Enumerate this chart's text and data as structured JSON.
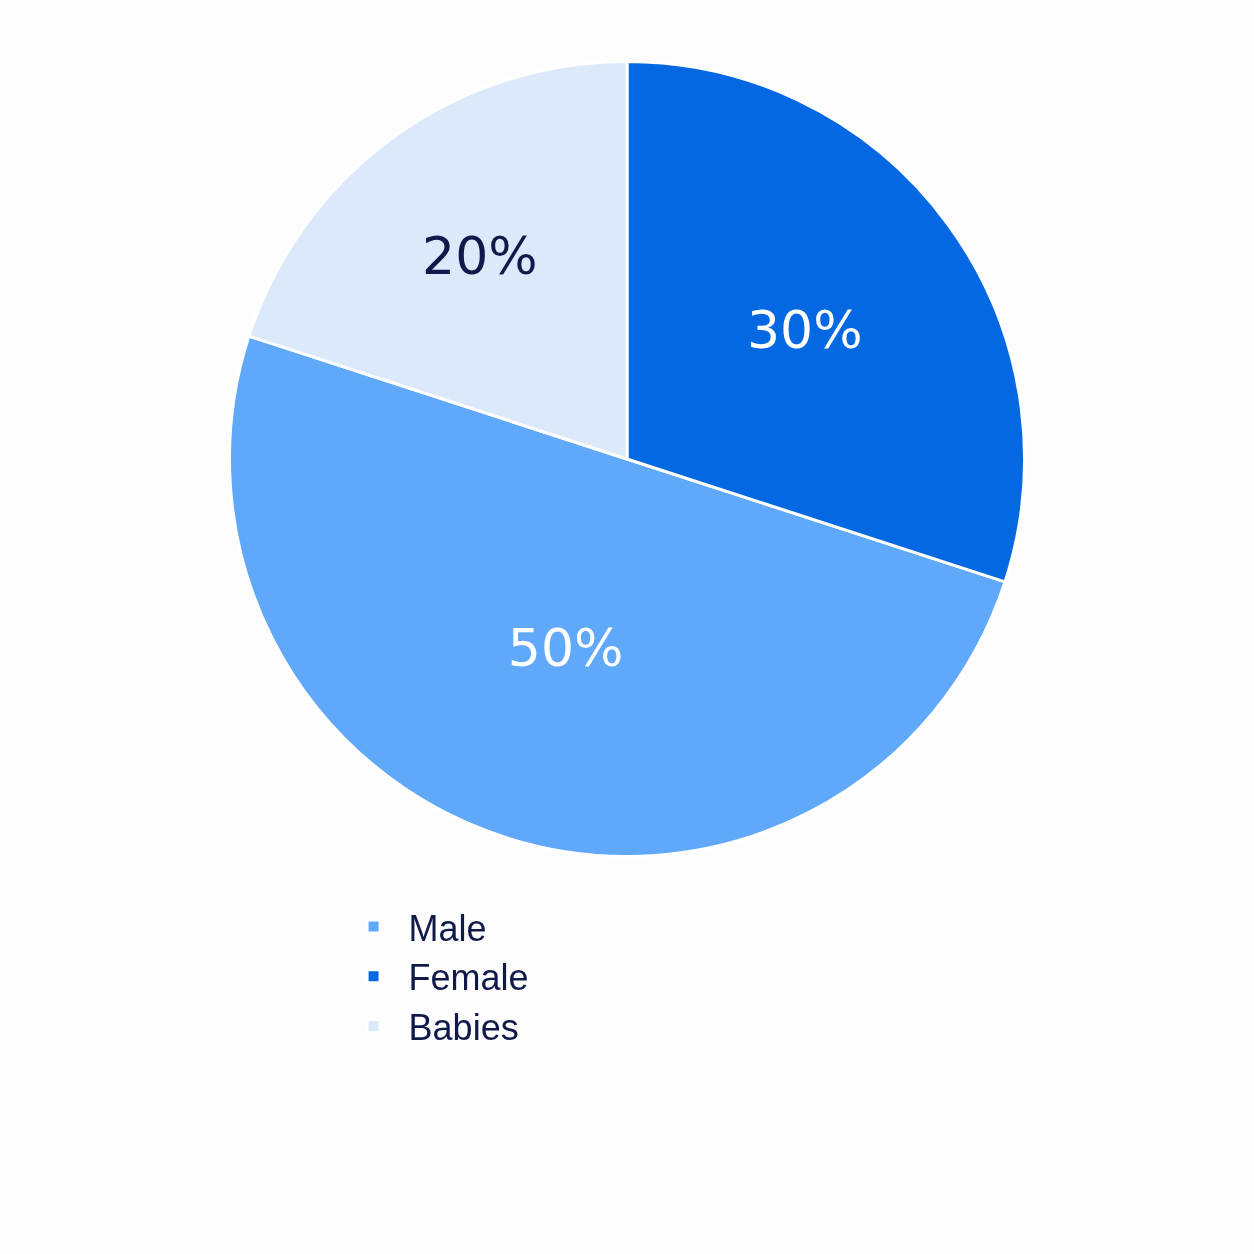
{
  "chart_data": {
    "type": "pie",
    "categories": [
      "Male",
      "Female",
      "Babies"
    ],
    "values": [
      50,
      30,
      20
    ],
    "colors": [
      "#60a8fa",
      "#0468e2",
      "#dce9fb"
    ],
    "value_labels": [
      "50%",
      "30%",
      "20%"
    ],
    "legend": "bottom"
  }
}
